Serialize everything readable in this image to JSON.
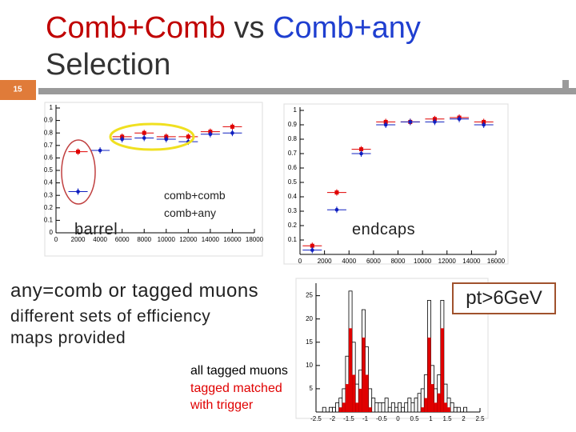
{
  "header": {
    "slide_number": "15",
    "title_part1": "Comb+Comb",
    "title_part2": "vs",
    "title_part3": "Comb+any",
    "title_line2": "Selection"
  },
  "text": {
    "line1": "any=comb or tagged muons",
    "line2": "different sets of efficiency maps provided",
    "box": "pt>6GeV"
  },
  "chart_data": [
    {
      "type": "scatter",
      "label": "barrel",
      "x": [
        2000,
        4000,
        6000,
        8000,
        10000,
        12000,
        14000,
        16000
      ],
      "series": [
        {
          "name": "comb+comb",
          "color": "#e00000",
          "values": [
            0.65,
            null,
            0.77,
            0.8,
            0.77,
            0.77,
            0.81,
            0.85
          ]
        },
        {
          "name": "comb+any",
          "color": "#1020c0",
          "values": [
            0.33,
            0.66,
            0.75,
            0.76,
            0.75,
            0.73,
            0.79,
            0.8
          ]
        }
      ],
      "xlim": [
        0,
        18000
      ],
      "xticks": [
        0,
        2000,
        4000,
        6000,
        8000,
        10000,
        12000,
        14000,
        16000,
        18000
      ],
      "ylim": [
        0,
        1
      ],
      "yticks": [
        0,
        0.1,
        0.2,
        0.3,
        0.4,
        0.5,
        0.6,
        0.7,
        0.8,
        0.9,
        1
      ]
    },
    {
      "type": "scatter",
      "label": "endcaps",
      "x": [
        1000,
        3000,
        5000,
        7000,
        9000,
        11000,
        13000,
        15000
      ],
      "series": [
        {
          "color": "#e00000",
          "values": [
            0.06,
            0.43,
            0.73,
            0.92,
            0.92,
            0.94,
            0.95,
            0.92
          ]
        },
        {
          "color": "#1020c0",
          "values": [
            0.03,
            0.31,
            0.7,
            0.9,
            0.92,
            0.92,
            0.94,
            0.9
          ]
        }
      ],
      "xlim": [
        0,
        16000
      ],
      "xticks": [
        0,
        2000,
        4000,
        6000,
        8000,
        10000,
        12000,
        14000,
        16000
      ],
      "ylim": [
        0,
        1
      ],
      "yticks": [
        0.1,
        0.2,
        0.3,
        0.4,
        0.5,
        0.6,
        0.7,
        0.8,
        0.9,
        1
      ]
    },
    {
      "type": "histogram",
      "bins": [
        -2.5,
        -2.4,
        -2.3,
        -2.2,
        -2.1,
        -2.0,
        -1.9,
        -1.8,
        -1.7,
        -1.6,
        -1.5,
        -1.4,
        -1.3,
        -1.2,
        -1.1,
        -1.0,
        -0.9,
        -0.8,
        -0.7,
        -0.6,
        -0.5,
        -0.4,
        -0.3,
        -0.2,
        -0.1,
        0,
        0.1,
        0.2,
        0.3,
        0.4,
        0.5,
        0.6,
        0.7,
        0.8,
        0.9,
        1.0,
        1.1,
        1.2,
        1.3,
        1.4,
        1.5,
        1.6,
        1.7,
        1.8,
        1.9,
        2.0,
        2.1,
        2.2,
        2.3,
        2.4,
        2.5
      ],
      "series": [
        {
          "name": "all tagged muons",
          "color": "#000000",
          "values": [
            0,
            0,
            1,
            0,
            1,
            1,
            2,
            3,
            5,
            12,
            26,
            15,
            6,
            9,
            22,
            14,
            5,
            3,
            2,
            2,
            2,
            3,
            1,
            2,
            1,
            2,
            1,
            2,
            3,
            2,
            3,
            4,
            5,
            8,
            24,
            10,
            5,
            8,
            24,
            6,
            3,
            2,
            1,
            1,
            0,
            1,
            0,
            0,
            0,
            0
          ]
        },
        {
          "name": "tagged matched with trigger",
          "color": "#e00000",
          "values": [
            0,
            0,
            0,
            0,
            0,
            0,
            0,
            1,
            2,
            6,
            18,
            8,
            2,
            5,
            16,
            8,
            1,
            0,
            0,
            0,
            0,
            0,
            0,
            0,
            0,
            0,
            0,
            0,
            0,
            0,
            0,
            0,
            1,
            3,
            16,
            6,
            2,
            4,
            18,
            2,
            1,
            0,
            0,
            0,
            0,
            0,
            0,
            0,
            0,
            0
          ]
        }
      ],
      "xlim": [
        -2.5,
        2.5
      ],
      "xticks": [
        -2.5,
        -2,
        -1.5,
        -1,
        -0.5,
        0,
        0.5,
        1,
        1.5,
        2,
        2.5
      ],
      "ylim": [
        0,
        27
      ],
      "yticks": [
        5,
        10,
        15,
        20,
        25
      ]
    }
  ]
}
